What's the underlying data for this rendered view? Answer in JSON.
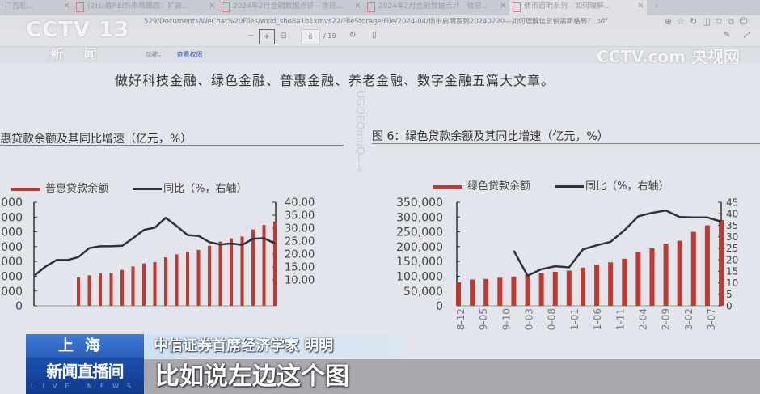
{
  "browser": {
    "tabs": [
      {
        "label": "广告贴..."
      },
      {
        "label": "(2)公募REITs市场跟踪：扩容..."
      },
      {
        "label": "2024年2月金融数据点评—信贷..."
      },
      {
        "label": "2024年2月金融数据点评—信贷..."
      },
      {
        "label": "债市启明系列—如何理解..."
      }
    ],
    "address": "529/Documents/WeChat%20Files/wxid_sho8a1b1xmvs22/FileStorage/File/2024-04/债市启明系列20240220—如何理解信贷供需新格局？.pdf",
    "toolbar": {
      "zoom_out": "−",
      "zoom_in": "+",
      "page_current": "6",
      "page_total": "/ 19"
    },
    "sub_left": "功能。",
    "sub_link": "查看权限"
  },
  "document": {
    "heading": "做好科技金融、绿色金融、普惠金融、养老金融、数字金融五篇大文章。",
    "watermark": "UGQEQmuQ=="
  },
  "chart_data": [
    {
      "type": "bar+line",
      "title": "惠贷款余额及其同比增速（亿元，%）",
      "legend": [
        "普惠贷款余额",
        "同比（%，右轴）"
      ],
      "legend_placement": "top",
      "ylim_left": [
        0,
        350000
      ],
      "yticks_left": [
        "000",
        "000",
        "000",
        "000",
        "000",
        "000",
        "000",
        "0"
      ],
      "ylim_right": [
        0,
        40
      ],
      "yticks_right": [
        "40.00",
        "35.00",
        "30.00",
        "25.00",
        "20.00",
        "15.00",
        "10.00"
      ],
      "bar_values": [
        null,
        null,
        null,
        null,
        96000,
        103000,
        109000,
        111000,
        121000,
        133000,
        143000,
        148000,
        164000,
        174000,
        182000,
        189000,
        203000,
        217000,
        228000,
        234000,
        258000,
        273000,
        285000
      ],
      "line_values": [
        11.8,
        15.2,
        17.7,
        17.7,
        18.8,
        22.3,
        23.0,
        23.0,
        23.2,
        26.1,
        29.3,
        30.2,
        34.0,
        30.8,
        27.3,
        27.0,
        24.6,
        23.7,
        24.1,
        23.5,
        25.9,
        26.1,
        24.1
      ],
      "colors": {
        "bar": "#c0392f",
        "line": "#2d323c"
      }
    },
    {
      "type": "bar+line",
      "title": "图 6：绿色贷款余额及其同比增速（亿元，%）",
      "legend": [
        "绿色贷款余额",
        "同比（%，右轴）"
      ],
      "legend_placement": "top",
      "ylim_left": [
        0,
        350000
      ],
      "yticks_left": [
        "350,000",
        "300,000",
        "250,000",
        "200,000",
        "150,000",
        "100,000",
        "50,000",
        "0"
      ],
      "ylim_right": [
        0,
        45
      ],
      "yticks_right": [
        "45",
        "40",
        "35",
        "30",
        "25",
        "20",
        "15",
        "10",
        "5",
        "0"
      ],
      "xtick_labels": [
        "8-12",
        "9-05",
        "9-10",
        "0-03",
        "0-08",
        "1-01",
        "1-06",
        "1-11",
        "2-04",
        "2-09",
        "3-02",
        "3-07"
      ],
      "bar_values": [
        80000,
        89000,
        91000,
        95000,
        99000,
        105000,
        110000,
        115000,
        119000,
        129000,
        139000,
        147000,
        159000,
        181000,
        194000,
        210000,
        220000,
        250000,
        272000,
        290000
      ],
      "line_values": [
        null,
        null,
        null,
        null,
        24.0,
        13.1,
        15.9,
        17.2,
        16.7,
        24.5,
        26.3,
        27.8,
        32.8,
        38.9,
        40.4,
        41.4,
        38.6,
        38.4,
        38.4,
        36.6
      ],
      "colors": {
        "bar": "#c0392f",
        "line": "#2d323c"
      }
    }
  ],
  "broadcast": {
    "channel_logo": "CCTV 13",
    "channel_sub": "新 闻",
    "site_logo": "CCTV.com 央视网",
    "location": "上海",
    "program": "新闻直播间",
    "program_sub": "LIVE NEWS",
    "speaker": "中信证券首席经济学家 明明",
    "caption": "比如说左边这个图"
  }
}
